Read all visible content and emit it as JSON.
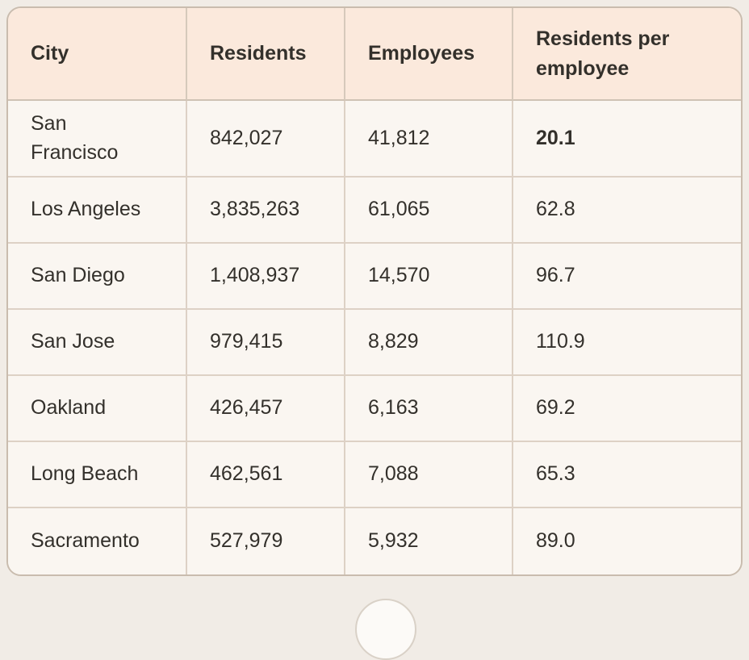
{
  "colors": {
    "page_background": "#f1ece6",
    "card_border": "#c9bcae",
    "header_background": "#fbe9dc",
    "cell_background": "#faf6f1",
    "grid_line": "#ddd1c5",
    "text": "#33302b",
    "peek_button_background": "#fcfaf7",
    "peek_button_border": "#d9d1c7"
  },
  "table": {
    "columns": [
      {
        "id": "city",
        "label": "City"
      },
      {
        "id": "residents",
        "label": "Residents"
      },
      {
        "id": "employees",
        "label": "Employees"
      },
      {
        "id": "ratio",
        "label": "Residents per employee"
      }
    ],
    "rows": [
      {
        "city": "San\nFrancisco",
        "residents": "842,027",
        "employees": "41,812",
        "ratio": "20.1",
        "ratio_bold": true
      },
      {
        "city": "Los Angeles",
        "residents": "3,835,263",
        "employees": "61,065",
        "ratio": "62.8",
        "ratio_bold": false
      },
      {
        "city": "San Diego",
        "residents": "1,408,937",
        "employees": "14,570",
        "ratio": "96.7",
        "ratio_bold": false
      },
      {
        "city": "San Jose",
        "residents": "979,415",
        "employees": "8,829",
        "ratio": "110.9",
        "ratio_bold": false
      },
      {
        "city": "Oakland",
        "residents": "426,457",
        "employees": "6,163",
        "ratio": "69.2",
        "ratio_bold": false
      },
      {
        "city": "Long Beach",
        "residents": "462,561",
        "employees": "7,088",
        "ratio": "65.3",
        "ratio_bold": false
      },
      {
        "city": "Sacramento",
        "residents": "527,979",
        "employees": "5,932",
        "ratio": "89.0",
        "ratio_bold": false
      }
    ]
  }
}
